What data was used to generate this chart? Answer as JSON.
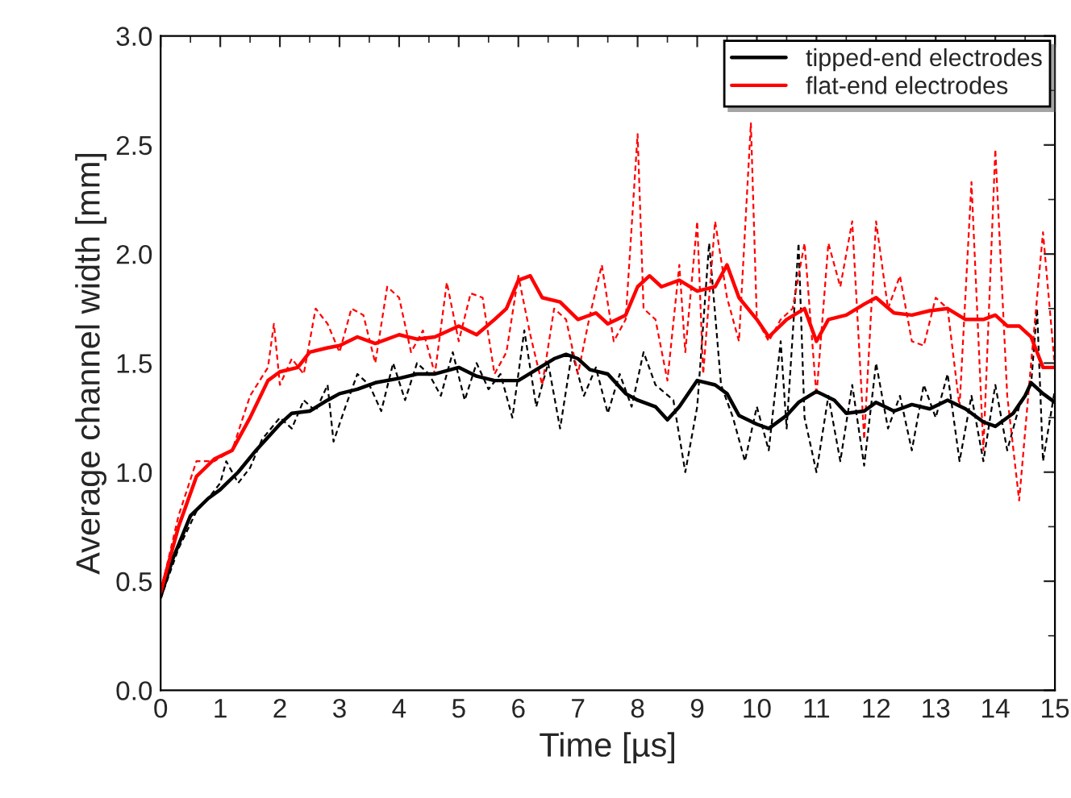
{
  "chart_data": {
    "type": "line",
    "xlabel": "Time [µs]",
    "ylabel": "Average channel width [mm]",
    "xlim": [
      0,
      15
    ],
    "xticks": [
      0,
      1,
      2,
      3,
      4,
      5,
      6,
      7,
      8,
      9,
      10,
      11,
      12,
      13,
      14,
      15
    ],
    "ylim": [
      0,
      3
    ],
    "yticks": [
      {
        "value": 0,
        "label": "0.0"
      },
      {
        "value": 0.5,
        "label": "0.5"
      },
      {
        "value": 1,
        "label": "1.0"
      },
      {
        "value": 1.5,
        "label": "1.5"
      },
      {
        "value": 2,
        "label": "2.0"
      },
      {
        "value": 2.5,
        "label": "2.5"
      },
      {
        "value": 3,
        "label": "3.0"
      }
    ],
    "legend": "top right",
    "grid": false,
    "series": [
      {
        "color": "#000000",
        "line_style": "dashed",
        "x": [
          0,
          0.3,
          0.6,
          0.8,
          1.0,
          1.1,
          1.3,
          1.5,
          1.7,
          2.0,
          2.2,
          2.4,
          2.6,
          2.8,
          2.9,
          3.1,
          3.3,
          3.5,
          3.7,
          3.9,
          4.1,
          4.3,
          4.5,
          4.7,
          4.9,
          5.1,
          5.3,
          5.5,
          5.7,
          5.9,
          6.1,
          6.3,
          6.5,
          6.7,
          6.9,
          7.1,
          7.3,
          7.5,
          7.7,
          7.9,
          8.1,
          8.3,
          8.6,
          8.8,
          9.0,
          9.2,
          9.4,
          9.6,
          9.8,
          10.0,
          10.2,
          10.4,
          10.5,
          10.7,
          10.8,
          11.0,
          11.2,
          11.4,
          11.6,
          11.8,
          12.0,
          12.2,
          12.4,
          12.6,
          12.8,
          13.0,
          13.2,
          13.4,
          13.6,
          13.8,
          14.0,
          14.2,
          14.4,
          14.6,
          14.7,
          14.8,
          15
        ],
        "values": [
          0.42,
          0.65,
          0.82,
          0.88,
          0.95,
          1.05,
          0.95,
          1.02,
          1.15,
          1.25,
          1.2,
          1.33,
          1.28,
          1.4,
          1.14,
          1.3,
          1.45,
          1.4,
          1.28,
          1.5,
          1.33,
          1.5,
          1.45,
          1.35,
          1.55,
          1.33,
          1.5,
          1.38,
          1.45,
          1.25,
          1.65,
          1.3,
          1.5,
          1.2,
          1.55,
          1.35,
          1.48,
          1.27,
          1.45,
          1.3,
          1.55,
          1.4,
          1.33,
          1.0,
          1.3,
          2.05,
          1.4,
          1.25,
          1.05,
          1.3,
          1.1,
          1.6,
          1.2,
          2.05,
          1.25,
          1.0,
          1.35,
          1.05,
          1.4,
          1.03,
          1.5,
          1.2,
          1.35,
          1.1,
          1.4,
          1.25,
          1.45,
          1.05,
          1.35,
          1.05,
          1.4,
          1.1,
          1.3,
          1.4,
          1.75,
          1.05,
          1.38
        ]
      },
      {
        "color": "#ff0000",
        "line_style": "dashed",
        "x": [
          0,
          0.3,
          0.6,
          0.9,
          1.2,
          1.5,
          1.8,
          1.9,
          2.0,
          2.2,
          2.4,
          2.6,
          2.8,
          3.0,
          3.2,
          3.4,
          3.6,
          3.8,
          4.0,
          4.2,
          4.4,
          4.6,
          4.8,
          5.0,
          5.2,
          5.4,
          5.6,
          5.8,
          6.0,
          6.2,
          6.4,
          6.6,
          6.8,
          7.0,
          7.2,
          7.4,
          7.6,
          7.8,
          8.0,
          8.1,
          8.3,
          8.5,
          8.7,
          8.8,
          9.0,
          9.1,
          9.3,
          9.5,
          9.7,
          9.9,
          10.0,
          10.2,
          10.4,
          10.6,
          10.8,
          11.0,
          11.2,
          11.4,
          11.6,
          11.8,
          12.0,
          12.2,
          12.4,
          12.6,
          12.8,
          13.0,
          13.2,
          13.4,
          13.6,
          13.8,
          14.0,
          14.2,
          14.4,
          14.6,
          14.8,
          15
        ],
        "values": [
          0.45,
          0.8,
          1.05,
          1.05,
          1.1,
          1.35,
          1.48,
          1.68,
          1.4,
          1.52,
          1.45,
          1.75,
          1.68,
          1.55,
          1.75,
          1.72,
          1.5,
          1.85,
          1.8,
          1.55,
          1.65,
          1.45,
          1.87,
          1.6,
          1.82,
          1.8,
          1.45,
          1.55,
          1.9,
          1.63,
          1.4,
          1.75,
          1.7,
          1.45,
          1.72,
          1.95,
          1.6,
          1.7,
          2.55,
          1.75,
          1.7,
          1.42,
          1.95,
          1.55,
          2.15,
          1.45,
          2.15,
          1.8,
          1.6,
          2.6,
          1.7,
          1.6,
          1.7,
          1.75,
          2.05,
          1.35,
          2.05,
          1.85,
          2.15,
          1.15,
          2.15,
          1.75,
          1.9,
          1.6,
          1.58,
          1.8,
          1.75,
          1.3,
          2.33,
          1.1,
          2.48,
          1.35,
          0.87,
          1.5,
          2.1,
          1.48
        ]
      },
      {
        "name": "tipped-end electrodes",
        "color": "#000000",
        "line_style": "solid",
        "x": [
          0,
          0.2,
          0.5,
          0.8,
          1.0,
          1.3,
          1.6,
          2.0,
          2.2,
          2.5,
          2.8,
          3.0,
          3.3,
          3.6,
          4.0,
          4.3,
          4.6,
          5.0,
          5.3,
          5.6,
          6.0,
          6.3,
          6.6,
          6.8,
          7.0,
          7.2,
          7.5,
          7.8,
          8.0,
          8.3,
          8.5,
          8.7,
          9.0,
          9.3,
          9.5,
          9.7,
          10.0,
          10.2,
          10.5,
          10.7,
          11.0,
          11.3,
          11.5,
          11.8,
          12.0,
          12.3,
          12.6,
          12.9,
          13.2,
          13.5,
          13.8,
          14.0,
          14.3,
          14.5,
          14.6,
          14.8,
          15
        ],
        "values": [
          0.43,
          0.6,
          0.8,
          0.88,
          0.92,
          1.0,
          1.1,
          1.22,
          1.27,
          1.28,
          1.33,
          1.36,
          1.38,
          1.41,
          1.43,
          1.45,
          1.45,
          1.48,
          1.44,
          1.42,
          1.42,
          1.47,
          1.52,
          1.54,
          1.52,
          1.47,
          1.45,
          1.36,
          1.33,
          1.3,
          1.24,
          1.3,
          1.42,
          1.4,
          1.36,
          1.26,
          1.22,
          1.2,
          1.26,
          1.32,
          1.37,
          1.33,
          1.27,
          1.28,
          1.32,
          1.28,
          1.31,
          1.29,
          1.33,
          1.29,
          1.23,
          1.21,
          1.27,
          1.35,
          1.41,
          1.36,
          1.32
        ]
      },
      {
        "name": "flat-end electrodes",
        "color": "#ff0000",
        "line_style": "solid",
        "x": [
          0,
          0.3,
          0.6,
          0.9,
          1.2,
          1.5,
          1.8,
          2.0,
          2.3,
          2.5,
          2.8,
          3.0,
          3.3,
          3.6,
          4.0,
          4.3,
          4.6,
          5.0,
          5.3,
          5.6,
          5.8,
          6.0,
          6.2,
          6.4,
          6.7,
          7.0,
          7.3,
          7.5,
          7.8,
          8.0,
          8.2,
          8.4,
          8.7,
          9.0,
          9.3,
          9.5,
          9.7,
          10.0,
          10.2,
          10.5,
          10.8,
          11.0,
          11.2,
          11.5,
          11.8,
          12.0,
          12.3,
          12.6,
          12.9,
          13.2,
          13.5,
          13.8,
          14.0,
          14.2,
          14.4,
          14.6,
          14.8,
          15
        ],
        "values": [
          0.45,
          0.75,
          0.98,
          1.06,
          1.1,
          1.25,
          1.42,
          1.46,
          1.48,
          1.55,
          1.57,
          1.58,
          1.62,
          1.59,
          1.63,
          1.61,
          1.62,
          1.67,
          1.63,
          1.7,
          1.75,
          1.88,
          1.9,
          1.8,
          1.78,
          1.7,
          1.73,
          1.68,
          1.72,
          1.85,
          1.9,
          1.85,
          1.88,
          1.83,
          1.85,
          1.95,
          1.8,
          1.7,
          1.62,
          1.7,
          1.75,
          1.6,
          1.7,
          1.72,
          1.77,
          1.8,
          1.73,
          1.72,
          1.74,
          1.75,
          1.7,
          1.7,
          1.72,
          1.67,
          1.67,
          1.62,
          1.48,
          1.48
        ]
      }
    ]
  }
}
